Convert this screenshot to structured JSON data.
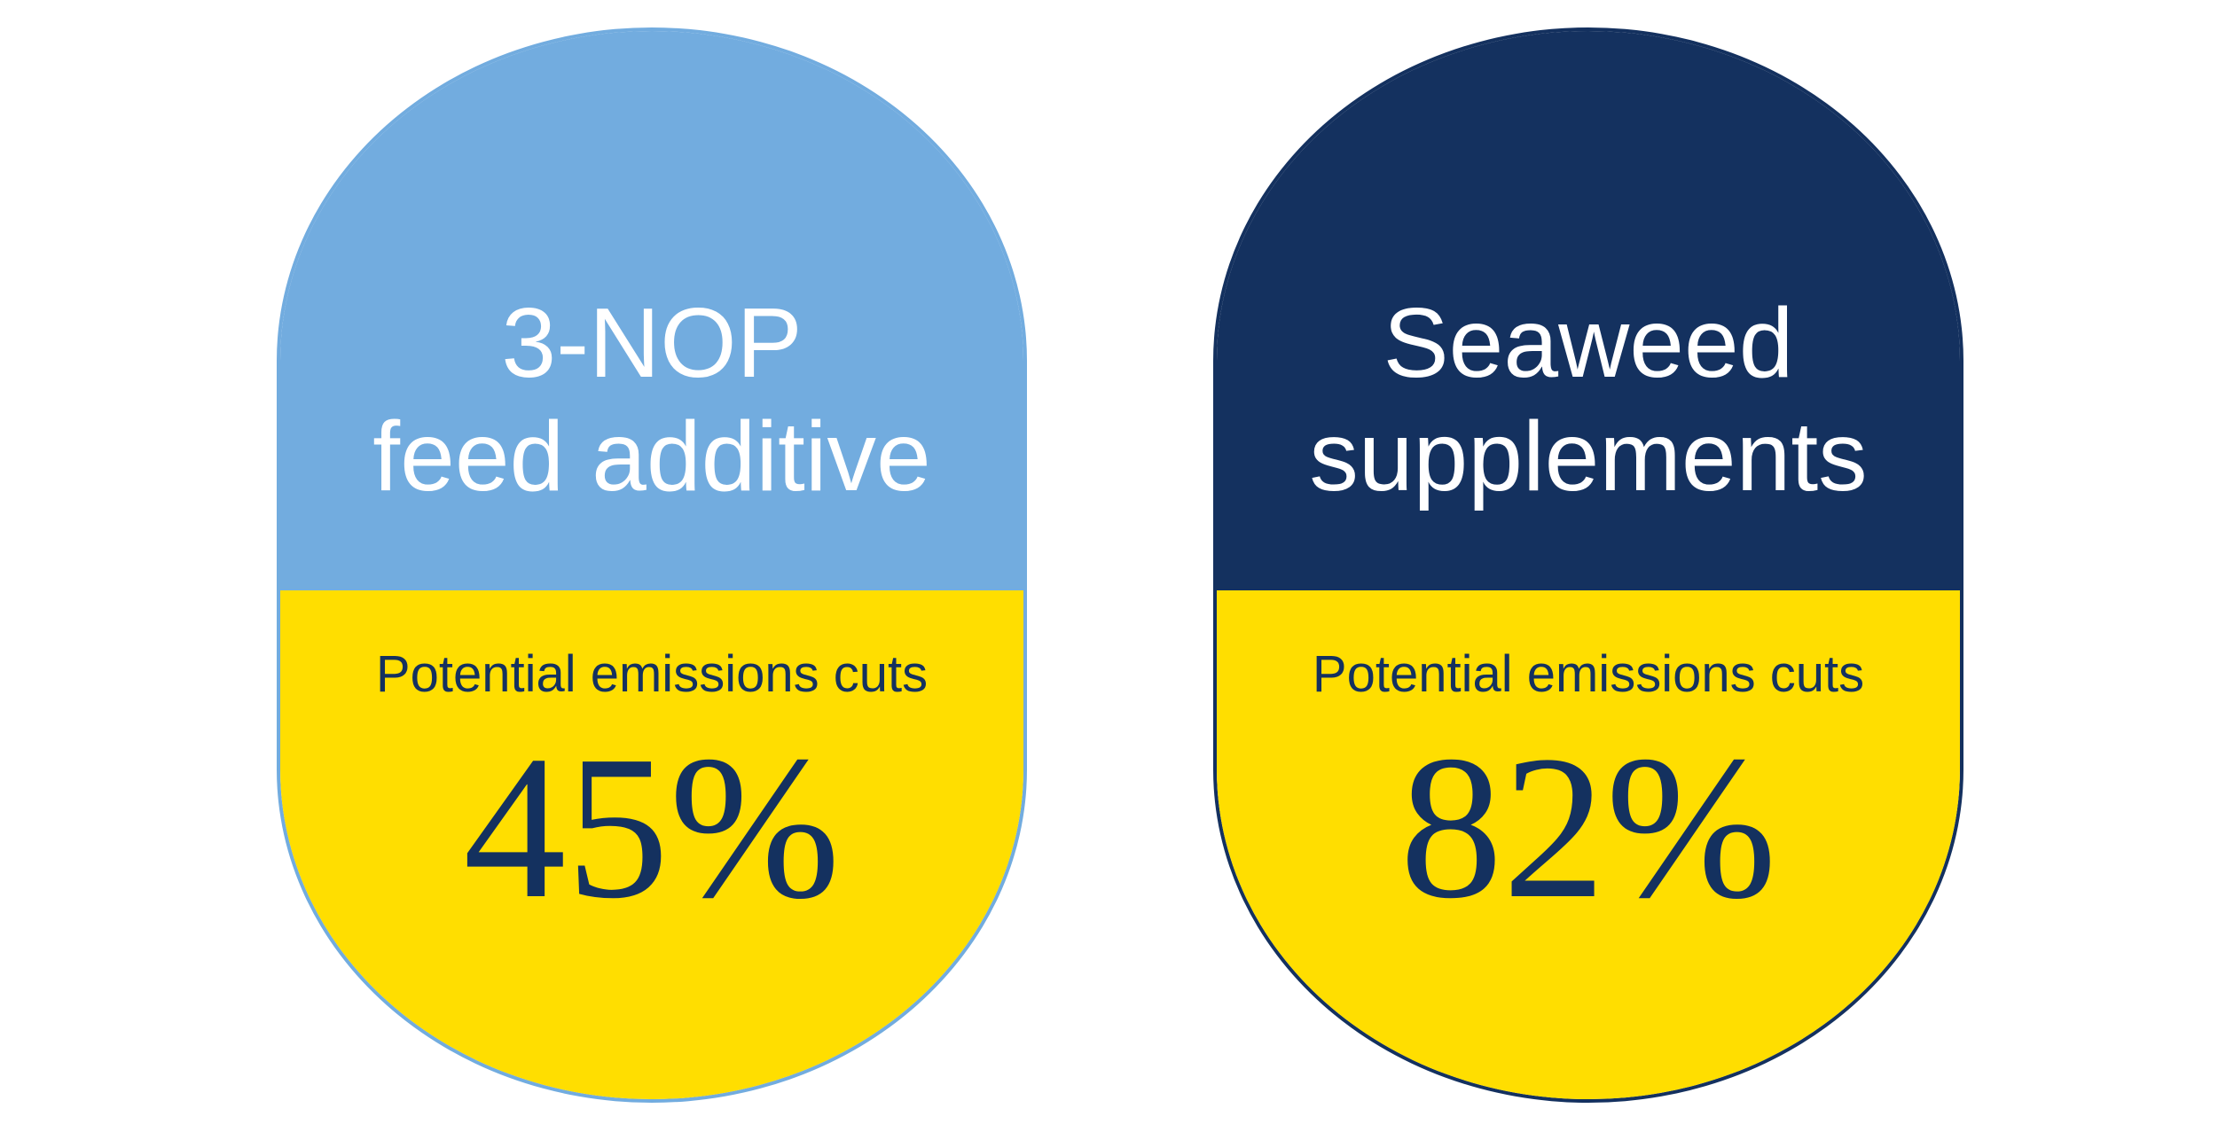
{
  "chart_data": {
    "type": "bar",
    "categories": [
      "3-NOP feed additive",
      "Seaweed supplements"
    ],
    "values": [
      45,
      82
    ],
    "value_labels": [
      "45%",
      "82%"
    ],
    "title": "",
    "xlabel": "",
    "ylabel": "Potential emissions cuts (%)",
    "ylim": [
      0,
      100
    ],
    "legend": "none",
    "grid": false,
    "layout": "two pill-shaped badges side by side; top half of each pill holds the category name, bottom yellow half holds the label and percentage value"
  },
  "canvas": {
    "background_color": "#FFFFFF"
  },
  "colors": {
    "light_blue": "#72ACDF",
    "navy": "#14315F",
    "yellow": "#FFDE00",
    "title_text": "#FFFFFF",
    "value_text": "#14315F"
  },
  "pills": [
    {
      "title_line1": "3-NOP",
      "title_line2": "feed additive",
      "label": "Potential emissions cuts",
      "value": "45%"
    },
    {
      "title_line1": "Seaweed",
      "title_line2": "supplements",
      "label": "Potential emissions cuts",
      "value": "82%"
    }
  ]
}
